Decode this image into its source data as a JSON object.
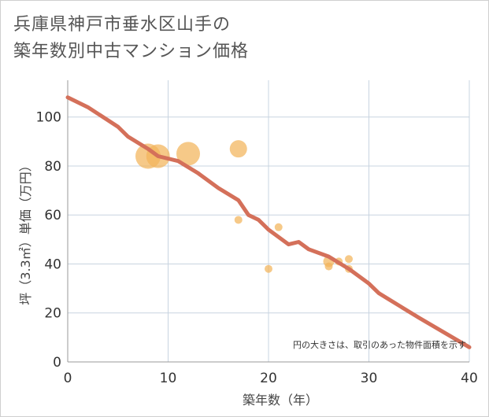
{
  "title_lines": [
    "兵庫県神戸市垂水区山手の",
    "築年数別中古マンション価格"
  ],
  "chart_data": {
    "type": "scatter",
    "title": "兵庫県神戸市垂水区山手の築年数別中古マンション価格",
    "xlabel": "築年数（年）",
    "ylabel": "坪（3.3㎡）単価（万円）",
    "xlim": [
      0,
      40
    ],
    "ylim": [
      0,
      115
    ],
    "xticks": [
      0,
      10,
      20,
      30,
      40
    ],
    "yticks": [
      0,
      20,
      40,
      60,
      80,
      100
    ],
    "grid": true,
    "note": "円の大きさは、取引のあった物件面積を示す",
    "colors": {
      "bubble": "#f2b45a",
      "trend": "#d4705a",
      "grid": "#c8d4e0"
    },
    "scatter": [
      {
        "x": 8,
        "y": 84,
        "size": 16
      },
      {
        "x": 9,
        "y": 84,
        "size": 15
      },
      {
        "x": 12,
        "y": 85,
        "size": 15
      },
      {
        "x": 17,
        "y": 87,
        "size": 11
      },
      {
        "x": 17,
        "y": 58,
        "size": 5
      },
      {
        "x": 20,
        "y": 38,
        "size": 5
      },
      {
        "x": 21,
        "y": 55,
        "size": 5
      },
      {
        "x": 26,
        "y": 41,
        "size": 7
      },
      {
        "x": 26,
        "y": 39,
        "size": 5
      },
      {
        "x": 27,
        "y": 41,
        "size": 5
      },
      {
        "x": 28,
        "y": 42,
        "size": 5
      },
      {
        "x": 28,
        "y": 38,
        "size": 5
      }
    ],
    "trend": {
      "x": [
        0,
        2,
        5,
        6,
        8,
        9,
        11,
        13,
        15,
        17,
        18,
        19,
        20,
        22,
        23,
        24,
        26,
        28,
        30,
        31,
        35,
        40
      ],
      "y": [
        108,
        104,
        96,
        92,
        87,
        84,
        82,
        77,
        71,
        66,
        60,
        58,
        54,
        48,
        49,
        46,
        43,
        38,
        32,
        28,
        18,
        6
      ]
    }
  }
}
